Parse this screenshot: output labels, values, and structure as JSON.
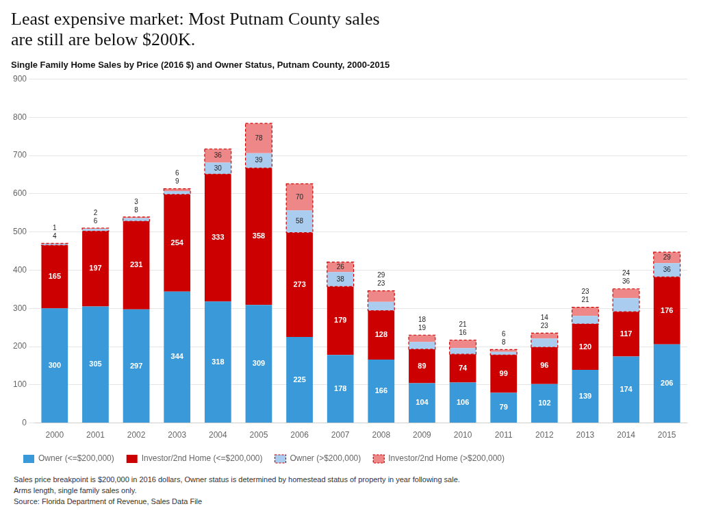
{
  "chart_data": {
    "type": "bar",
    "title": "Least expensive market: Most Putnam County sales\nare still are below $200K.",
    "subtitle": "Single Family Home Sales by Price (2016 $) and Owner Status, Putnam County, 2000-2015",
    "categories": [
      "2000",
      "2001",
      "2002",
      "2003",
      "2004",
      "2005",
      "2006",
      "2007",
      "2008",
      "2009",
      "2010",
      "2011",
      "2012",
      "2013",
      "2014",
      "2015"
    ],
    "series": [
      {
        "name": "Owner (<=$200,000)",
        "color": "#3a9ad9",
        "values": [
          300,
          305,
          297,
          344,
          318,
          309,
          225,
          178,
          166,
          104,
          106,
          79,
          102,
          139,
          174,
          206
        ]
      },
      {
        "name": "Investor/2nd Home (<=$200,000)",
        "color": "#cc0000",
        "values": [
          165,
          197,
          231,
          254,
          333,
          358,
          273,
          179,
          128,
          89,
          74,
          99,
          96,
          120,
          117,
          176
        ]
      },
      {
        "name": "Owner (>$200,000)",
        "color": "#aaccee",
        "values": [
          4,
          6,
          8,
          9,
          30,
          39,
          58,
          38,
          23,
          19,
          16,
          8,
          23,
          21,
          36,
          36
        ]
      },
      {
        "name": "Investor/2nd Home (>$200,000)",
        "color": "#ee8888",
        "values": [
          1,
          2,
          3,
          6,
          36,
          78,
          70,
          26,
          29,
          18,
          21,
          6,
          14,
          23,
          24,
          29
        ]
      }
    ],
    "stacked": true,
    "ylim": [
      0,
      900
    ],
    "yticks": [
      0,
      100,
      200,
      300,
      400,
      500,
      600,
      700,
      800,
      900
    ],
    "grid": true,
    "legend": "bottom",
    "data_labels": true,
    "annotations": [
      "Sales price breakpoint is $200,000 in 2016 dollars, Owner status is determined by homestead status of property in year following sale.",
      "Arms length, single family sales only.",
      "Source: Florida Department of Revenue, Sales Data File"
    ]
  }
}
